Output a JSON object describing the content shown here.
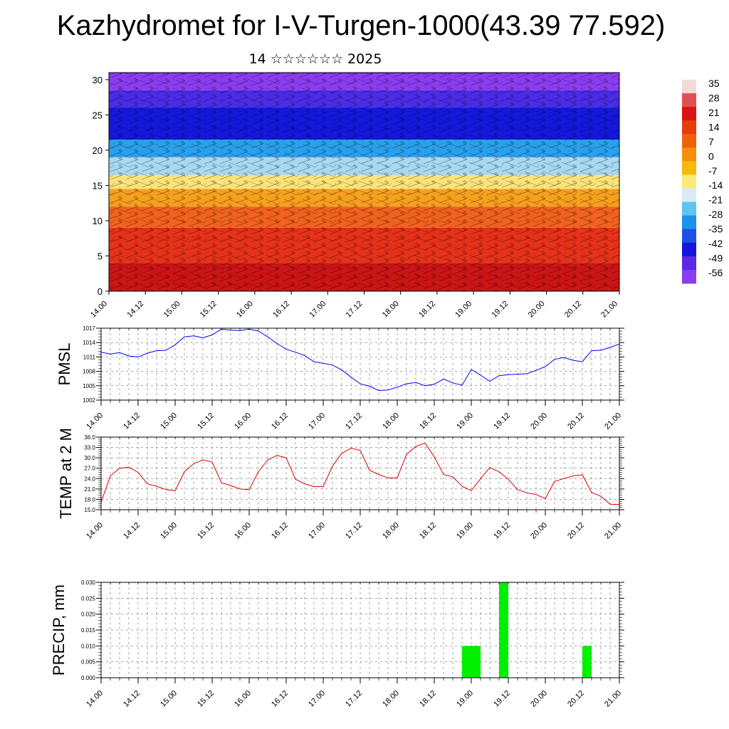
{
  "title": "Kazhydromet for I-V-Turgen-1000(43.39 77.592)",
  "subtitle": "14 ☆☆☆☆☆☆ 2025",
  "time_ticks": [
    "14.00",
    "14.12",
    "15.00",
    "15.12",
    "16.00",
    "16.12",
    "17.00",
    "17.12",
    "18.00",
    "18.12",
    "19.00",
    "19.12",
    "20.00",
    "20.12",
    "21.00"
  ],
  "chart_data": [
    {
      "type": "heatmap",
      "panel": "cross-section",
      "x_ticks": [
        "14.00",
        "14.12",
        "15.00",
        "15.12",
        "16.00",
        "16.12",
        "17.00",
        "17.12",
        "18.00",
        "18.12",
        "19.00",
        "19.12",
        "20.00",
        "20.12",
        "21.00"
      ],
      "y_ticks": [
        "0",
        "5",
        "10",
        "15",
        "20",
        "25",
        "30"
      ],
      "ylim": [
        0,
        31
      ],
      "colorbar_labels": [
        "35",
        "28",
        "21",
        "14",
        "7",
        "0",
        "-7",
        "-14",
        "-21",
        "-28",
        "-35",
        "-42",
        "-49",
        "-56"
      ],
      "colorbar_colors": [
        "#f4d9d9",
        "#e15050",
        "#d81414",
        "#e63d0a",
        "#f0620a",
        "#f58f0a",
        "#f7b80f",
        "#fbe97a",
        "#d8ecf6",
        "#5fc3f0",
        "#1e90e8",
        "#1e50e6",
        "#1414e0",
        "#5a28e6",
        "#8a3cf0"
      ],
      "layers": [
        {
          "from": 0,
          "to": 4,
          "color": "#cc1414"
        },
        {
          "from": 4,
          "to": 9,
          "color": "#e63219"
        },
        {
          "from": 9,
          "to": 12,
          "color": "#f0621e"
        },
        {
          "from": 12,
          "to": 14.5,
          "color": "#f6a01e"
        },
        {
          "from": 14.5,
          "to": 16.5,
          "color": "#fbe27a"
        },
        {
          "from": 16.5,
          "to": 19,
          "color": "#a8d8f2"
        },
        {
          "from": 19,
          "to": 21.5,
          "color": "#2aa0ec"
        },
        {
          "from": 21.5,
          "to": 26,
          "color": "#1418dc"
        },
        {
          "from": 26,
          "to": 28.5,
          "color": "#4a2ce6"
        },
        {
          "from": 28.5,
          "to": 31,
          "color": "#8a3cf0"
        }
      ]
    },
    {
      "type": "line",
      "ylabel": "PMSL",
      "ylim": [
        1002,
        1017
      ],
      "y_ticks": [
        "1002",
        "1005",
        "1008",
        "1011",
        "1014",
        "1017"
      ],
      "x_ticks": [
        "14.00",
        "14.12",
        "15.00",
        "15.12",
        "16.00",
        "16.12",
        "17.00",
        "17.12",
        "18.00",
        "18.12",
        "19.00",
        "19.12",
        "20.00",
        "20.12",
        "21.00"
      ],
      "color": "#0000ff",
      "x": [
        0,
        3,
        6,
        9,
        12,
        15,
        18,
        21,
        24,
        27,
        30,
        33,
        36,
        39,
        42,
        45,
        48,
        51,
        54,
        57,
        60,
        63,
        66,
        69,
        72,
        75,
        78,
        81,
        84,
        87,
        90,
        93,
        96,
        99,
        102,
        105,
        108,
        111,
        114,
        117,
        120,
        123,
        126,
        129,
        132,
        135,
        138,
        141,
        144,
        147,
        150,
        153,
        156,
        159,
        162,
        165,
        168
      ],
      "values": [
        1012.0,
        1011.6,
        1011.9,
        1011.2,
        1011.0,
        1011.8,
        1012.3,
        1012.4,
        1013.5,
        1015.2,
        1015.4,
        1015.0,
        1015.6,
        1016.8,
        1016.6,
        1016.5,
        1016.8,
        1016.4,
        1015.2,
        1013.8,
        1012.6,
        1012.0,
        1011.3,
        1010.0,
        1009.7,
        1009.3,
        1008.3,
        1006.8,
        1005.4,
        1004.9,
        1004.0,
        1004.1,
        1004.7,
        1005.4,
        1005.7,
        1005.0,
        1005.3,
        1006.4,
        1005.6,
        1005.1,
        1008.4,
        1007.2,
        1005.9,
        1007.1,
        1007.3,
        1007.4,
        1007.5,
        1008.2,
        1009.0,
        1010.5,
        1010.9,
        1010.3,
        1010.0,
        1012.3,
        1012.4,
        1013.0,
        1013.7
      ]
    },
    {
      "type": "line",
      "ylabel": "TEMP at 2 M",
      "ylim": [
        15,
        36
      ],
      "y_ticks": [
        "15.0",
        "18.0",
        "21.0",
        "24.0",
        "27.0",
        "30.0",
        "33.0",
        "36.0"
      ],
      "x_ticks": [
        "14.00",
        "14.12",
        "15.00",
        "15.12",
        "16.00",
        "16.12",
        "17.00",
        "17.12",
        "18.00",
        "18.12",
        "19.00",
        "19.12",
        "20.00",
        "20.12",
        "21.00"
      ],
      "color": "#e00000",
      "x": [
        0,
        3,
        6,
        9,
        12,
        15,
        18,
        21,
        24,
        27,
        30,
        33,
        36,
        39,
        42,
        45,
        48,
        51,
        54,
        57,
        60,
        63,
        66,
        69,
        72,
        75,
        78,
        81,
        84,
        87,
        90,
        93,
        96,
        99,
        102,
        105,
        108,
        111,
        114,
        117,
        120,
        123,
        126,
        129,
        132,
        135,
        138,
        141,
        144,
        147,
        150,
        153,
        156,
        159,
        162,
        165,
        168
      ],
      "values": [
        17.2,
        24.8,
        27.0,
        27.3,
        25.8,
        22.5,
        21.8,
        20.8,
        20.5,
        26.0,
        28.3,
        29.4,
        28.8,
        22.8,
        22.0,
        21.0,
        20.8,
        26.0,
        29.4,
        30.7,
        30.0,
        23.8,
        22.5,
        21.7,
        21.7,
        27.6,
        31.3,
        32.8,
        32.2,
        26.4,
        25.2,
        24.2,
        24.2,
        31.0,
        33.3,
        34.3,
        30.3,
        25.2,
        24.5,
        21.8,
        20.5,
        24.0,
        27.2,
        26.0,
        23.8,
        20.8,
        19.9,
        19.4,
        18.2,
        23.2,
        24.0,
        24.8,
        25.1,
        20.0,
        18.9,
        16.6,
        16.5
      ]
    },
    {
      "type": "bar",
      "ylabel": "PRECIP, mm",
      "ylim": [
        0,
        0.03
      ],
      "y_ticks": [
        "0.000",
        "0.005",
        "0.010",
        "0.015",
        "0.020",
        "0.025",
        "0.030"
      ],
      "x_ticks": [
        "14.00",
        "14.12",
        "15.00",
        "15.12",
        "16.00",
        "16.12",
        "17.00",
        "17.12",
        "18.00",
        "18.12",
        "19.00",
        "19.12",
        "20.00",
        "20.12",
        "21.00"
      ],
      "color": "#00f000",
      "bars": [
        {
          "x": 117,
          "width": 6,
          "value": 0.01
        },
        {
          "x": 129,
          "width": 3,
          "value": 0.03
        },
        {
          "x": 156,
          "width": 3,
          "value": 0.01
        }
      ]
    }
  ]
}
